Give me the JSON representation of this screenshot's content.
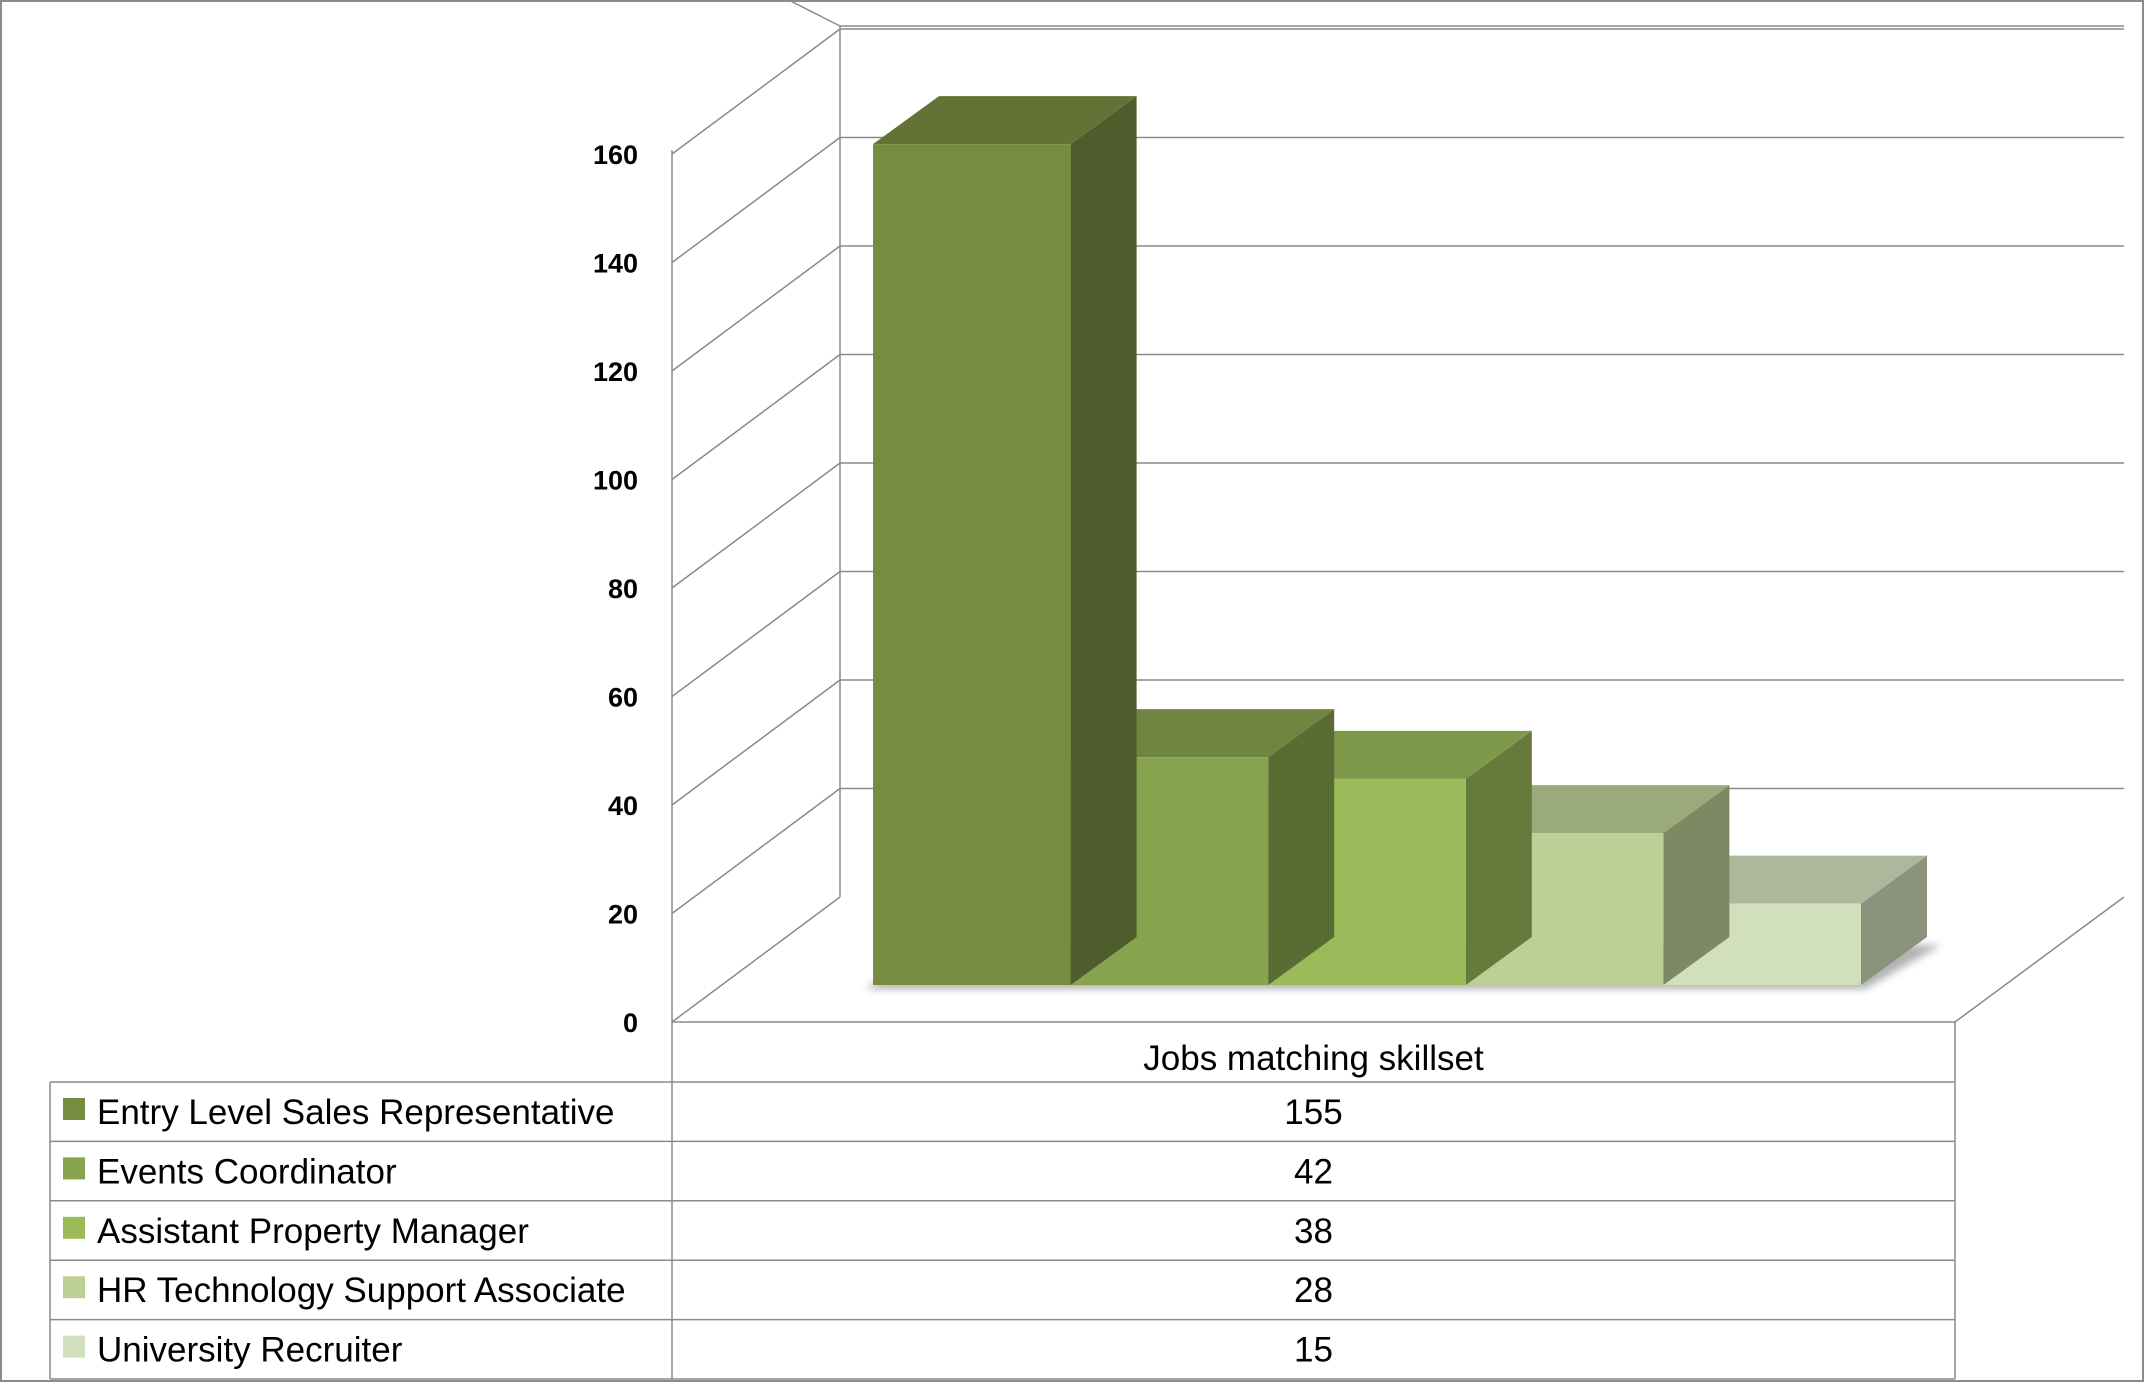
{
  "chart_data": {
    "type": "bar",
    "title": "",
    "xlabel": "",
    "ylabel": "",
    "ylim": [
      0,
      160
    ],
    "y_ticks": [
      0,
      20,
      40,
      60,
      80,
      100,
      120,
      140,
      160
    ],
    "grid": true,
    "legend": "table",
    "categories": [
      "Jobs matching skillset"
    ],
    "series": [
      {
        "name": "Entry Level Sales Representative",
        "values": [
          155
        ],
        "color": "#778c41"
      },
      {
        "name": "Events Coordinator",
        "values": [
          42
        ],
        "color": "#87a34f"
      },
      {
        "name": "Assistant Property Manager",
        "values": [
          38
        ],
        "color": "#9bbb5a"
      },
      {
        "name": "HR Technology Support Associate",
        "values": [
          28
        ],
        "color": "#bdcf96"
      },
      {
        "name": "University Recruiter",
        "values": [
          15
        ],
        "color": "#d2dfbd"
      }
    ]
  }
}
